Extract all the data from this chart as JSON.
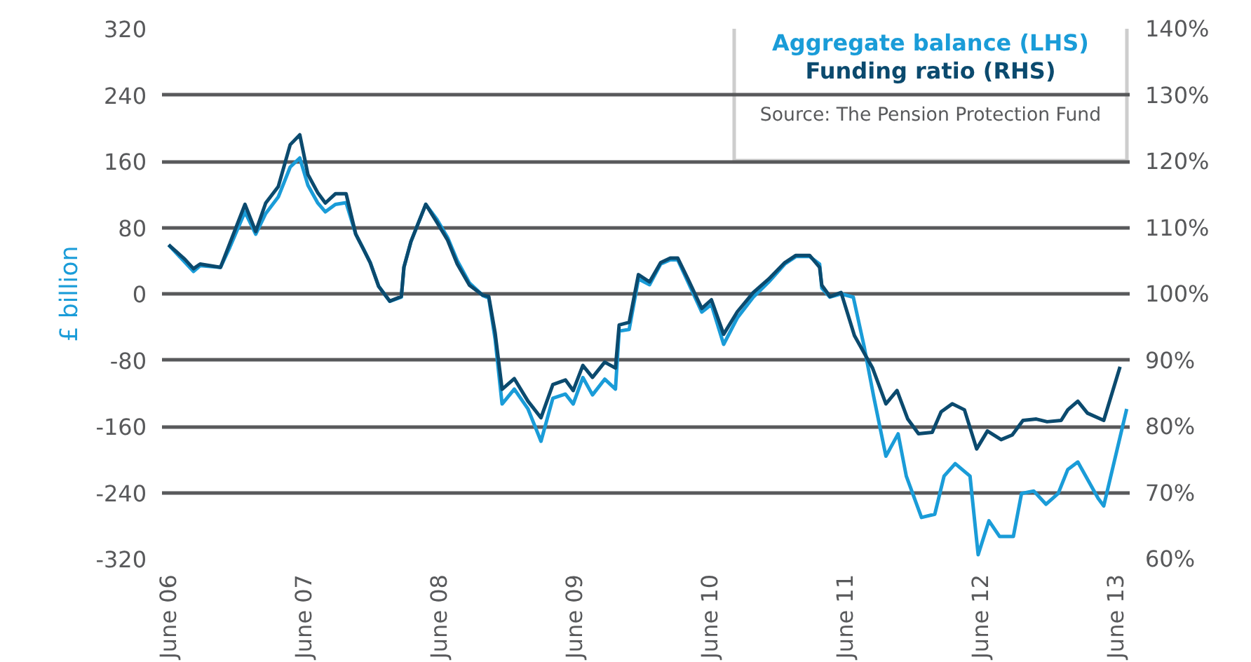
{
  "chart_data": {
    "type": "line",
    "ylabel": "£ billion",
    "xlim": [
      "2006-06-13",
      "2013-08-07"
    ],
    "xticks": [
      {
        "value": "2006-06-30",
        "label": "June 06"
      },
      {
        "value": "2007-06-30",
        "label": "June 07"
      },
      {
        "value": "2008-06-30",
        "label": "June 08"
      },
      {
        "value": "2009-06-30",
        "label": "June 09"
      },
      {
        "value": "2010-06-30",
        "label": "June 10"
      },
      {
        "value": "2011-06-30",
        "label": "June 11"
      },
      {
        "value": "2012-06-30",
        "label": "June 12"
      },
      {
        "value": "2013-06-30",
        "label": "June 13"
      }
    ],
    "ylim": [
      -320,
      320
    ],
    "yticks": [
      -320,
      -240,
      -160,
      -80,
      0,
      80,
      160,
      240,
      320
    ],
    "y2lim": [
      60,
      140
    ],
    "y2ticks": [
      {
        "value": 60,
        "label": "60%"
      },
      {
        "value": 70,
        "label": "70%"
      },
      {
        "value": 80,
        "label": "80%"
      },
      {
        "value": 90,
        "label": "90%"
      },
      {
        "value": 100,
        "label": "100%"
      },
      {
        "value": 110,
        "label": "110%"
      },
      {
        "value": 120,
        "label": "120%"
      },
      {
        "value": 130,
        "label": "130%"
      },
      {
        "value": 140,
        "label": "140%"
      }
    ],
    "grid": "y",
    "legend": "top right",
    "annotations": [
      "Source: The Pension Protection Fund"
    ],
    "series": [
      {
        "name": "Aggregate balance (LHS)",
        "color": "#1a9cd8",
        "x": [
          "2006-07-01",
          "2006-08-14",
          "2006-09-06",
          "2006-09-24",
          "2006-11-18",
          "2006-12-13",
          "2007-01-23",
          "2007-02-21",
          "2007-03-20",
          "2007-04-23",
          "2007-05-25",
          "2007-06-20",
          "2007-07-12",
          "2007-08-07",
          "2007-08-28",
          "2007-09-24",
          "2007-10-23",
          "2007-11-18",
          "2007-12-09",
          "2007-12-27",
          "2008-01-19",
          "2008-02-18",
          "2008-03-20",
          "2008-03-27",
          "2008-04-15",
          "2008-05-25",
          "2008-06-24",
          "2008-07-23",
          "2008-08-18",
          "2008-09-20",
          "2008-10-26",
          "2008-11-11",
          "2008-11-28",
          "2008-12-17",
          "2009-01-19",
          "2009-02-25",
          "2009-04-01",
          "2009-05-03",
          "2009-06-06",
          "2009-06-27",
          "2009-07-23",
          "2009-08-18",
          "2009-09-20",
          "2009-10-19",
          "2009-10-29",
          "2009-11-25",
          "2009-12-20",
          "2010-01-19",
          "2010-02-18",
          "2010-03-16",
          "2010-04-05",
          "2010-05-03",
          "2010-06-09",
          "2010-07-05",
          "2010-08-07",
          "2010-09-13",
          "2010-10-26",
          "2010-12-06",
          "2011-01-19",
          "2011-02-18",
          "2011-03-27",
          "2011-04-23",
          "2011-04-29",
          "2011-05-21",
          "2011-06-20",
          "2011-07-23",
          "2011-08-21",
          "2011-09-16",
          "2011-10-19",
          "2011-11-21",
          "2011-12-13",
          "2012-01-23",
          "2012-02-28",
          "2012-03-24",
          "2012-04-23",
          "2012-06-02",
          "2012-06-24",
          "2012-07-23",
          "2012-08-21",
          "2012-09-27",
          "2012-10-19",
          "2012-11-21",
          "2012-12-24",
          "2013-01-26",
          "2013-02-21",
          "2013-03-20",
          "2013-05-14",
          "2013-05-29",
          "2013-07-30"
        ],
        "values": [
          59,
          38,
          27,
          34,
          32,
          56,
          99,
          72,
          97,
          117,
          153,
          164,
          131,
          110,
          99,
          108,
          110,
          72,
          54,
          38,
          9,
          -9,
          -4,
          32,
          63,
          108,
          90,
          68,
          40,
          13,
          -2,
          -5,
          -54,
          -133,
          -115,
          -139,
          -178,
          -126,
          -121,
          -133,
          -101,
          -122,
          -103,
          -115,
          -45,
          -43,
          18,
          11,
          36,
          41,
          41,
          14,
          -22,
          -13,
          -61,
          -29,
          -4,
          14,
          36,
          45,
          45,
          36,
          7,
          -4,
          0,
          -4,
          -63,
          -124,
          -196,
          -169,
          -220,
          -270,
          -266,
          -220,
          -205,
          -220,
          -315,
          -274,
          -293,
          -293,
          -241,
          -238,
          -254,
          -241,
          -212,
          -203,
          -247,
          -256,
          -139
        ]
      },
      {
        "name": "Funding ratio (RHS)",
        "color": "#0b4a6e",
        "axis": "y2",
        "x": [
          "2006-07-01",
          "2006-08-14",
          "2006-09-06",
          "2006-09-24",
          "2006-11-18",
          "2006-12-13",
          "2007-01-23",
          "2007-02-21",
          "2007-03-20",
          "2007-04-23",
          "2007-05-25",
          "2007-06-20",
          "2007-07-12",
          "2007-08-07",
          "2007-08-28",
          "2007-09-24",
          "2007-10-23",
          "2007-11-18",
          "2007-12-09",
          "2007-12-27",
          "2008-01-19",
          "2008-02-18",
          "2008-03-20",
          "2008-03-27",
          "2008-04-15",
          "2008-05-25",
          "2008-06-24",
          "2008-07-23",
          "2008-08-18",
          "2008-09-20",
          "2008-10-26",
          "2008-11-11",
          "2008-11-28",
          "2008-12-17",
          "2009-01-19",
          "2009-02-25",
          "2009-04-01",
          "2009-05-03",
          "2009-06-06",
          "2009-06-27",
          "2009-07-23",
          "2009-08-18",
          "2009-09-20",
          "2009-10-19",
          "2009-10-29",
          "2009-11-25",
          "2009-12-20",
          "2010-01-19",
          "2010-02-18",
          "2010-03-16",
          "2010-04-05",
          "2010-05-03",
          "2010-06-09",
          "2010-07-05",
          "2010-08-07",
          "2010-09-13",
          "2010-10-26",
          "2010-12-06",
          "2011-01-19",
          "2011-02-18",
          "2011-03-27",
          "2011-04-23",
          "2011-04-29",
          "2011-05-21",
          "2011-06-20",
          "2011-07-26",
          "2011-09-13",
          "2011-10-19",
          "2011-11-18",
          "2011-12-17",
          "2012-01-15",
          "2012-02-21",
          "2012-03-16",
          "2012-04-15",
          "2012-05-18",
          "2012-06-20",
          "2012-07-19",
          "2012-08-25",
          "2012-09-24",
          "2012-10-23",
          "2012-11-28",
          "2012-12-27",
          "2013-02-03",
          "2013-02-21",
          "2013-03-20",
          "2013-04-15",
          "2013-05-29",
          "2013-07-12"
        ],
        "values": [
          107.4,
          105.2,
          103.8,
          104.5,
          104.0,
          107.6,
          113.5,
          109.4,
          113.7,
          116.2,
          122.5,
          124.0,
          118.0,
          115.3,
          113.7,
          115.1,
          115.1,
          109.0,
          106.7,
          104.7,
          101.1,
          98.9,
          99.6,
          104.0,
          107.9,
          113.5,
          110.8,
          108.1,
          104.5,
          101.3,
          99.8,
          99.6,
          94.2,
          85.6,
          87.2,
          83.8,
          81.3,
          86.3,
          87.0,
          85.4,
          89.2,
          87.4,
          89.7,
          88.8,
          95.3,
          95.7,
          102.9,
          101.8,
          104.7,
          105.4,
          105.4,
          102.2,
          97.8,
          99.1,
          93.9,
          97.3,
          100.2,
          102.2,
          104.7,
          105.8,
          105.8,
          104.0,
          101.3,
          99.6,
          100.2,
          93.7,
          88.8,
          83.4,
          85.4,
          81.1,
          78.9,
          79.1,
          82.2,
          83.4,
          82.5,
          76.6,
          79.3,
          78.0,
          78.7,
          80.9,
          81.1,
          80.7,
          80.9,
          82.5,
          83.8,
          82.0,
          80.9,
          89.0
        ]
      }
    ]
  }
}
